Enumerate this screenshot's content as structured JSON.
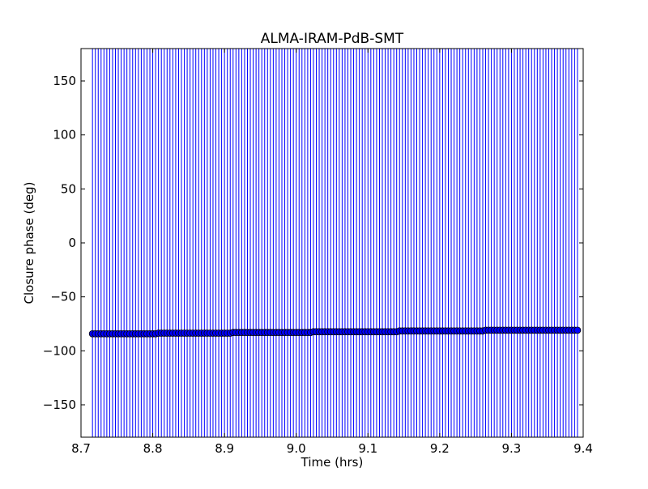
{
  "chart_data": {
    "type": "scatter",
    "title": "ALMA-IRAM-PdB-SMT",
    "xlabel": "Time (hrs)",
    "ylabel": "Closure phase (deg)",
    "xlim": [
      8.7,
      9.4
    ],
    "ylim": [
      -180,
      180
    ],
    "xticks": [
      "8.7",
      "8.8",
      "8.9",
      "9.0",
      "9.1",
      "9.2",
      "9.3",
      "9.4"
    ],
    "yticks": [
      "−150",
      "−100",
      "−50",
      "0",
      "50",
      "100",
      "150"
    ],
    "grid": false,
    "marker_color": "#0000ff",
    "errorbar_color": "#0000ff",
    "errorbar_range": [
      -180,
      180
    ],
    "x": [
      8.716,
      8.72,
      8.724,
      8.728,
      8.732,
      8.736,
      8.74,
      8.744,
      8.748,
      8.752,
      8.756,
      8.76,
      8.764,
      8.768,
      8.772,
      8.776,
      8.78,
      8.784,
      8.788,
      8.792,
      8.796,
      8.8,
      8.804,
      8.808,
      8.812,
      8.816,
      8.82,
      8.824,
      8.828,
      8.832,
      8.836,
      8.84,
      8.844,
      8.848,
      8.852,
      8.856,
      8.86,
      8.864,
      8.868,
      8.872,
      8.876,
      8.88,
      8.884,
      8.888,
      8.892,
      8.896,
      8.9,
      8.904,
      8.908,
      8.912,
      8.916,
      8.92,
      8.924,
      8.928,
      8.932,
      8.936,
      8.94,
      8.944,
      8.948,
      8.952,
      8.956,
      8.96,
      8.964,
      8.968,
      8.972,
      8.976,
      8.98,
      8.984,
      8.988,
      8.992,
      8.996,
      9.0,
      9.004,
      9.008,
      9.012,
      9.016,
      9.02,
      9.024,
      9.028,
      9.032,
      9.036,
      9.04,
      9.044,
      9.048,
      9.052,
      9.056,
      9.06,
      9.064,
      9.068,
      9.072,
      9.076,
      9.08,
      9.084,
      9.088,
      9.092,
      9.096,
      9.1,
      9.104,
      9.108,
      9.112,
      9.116,
      9.12,
      9.124,
      9.128,
      9.132,
      9.136,
      9.14,
      9.144,
      9.148,
      9.152,
      9.156,
      9.16,
      9.164,
      9.168,
      9.172,
      9.176,
      9.18,
      9.184,
      9.188,
      9.192,
      9.196,
      9.2,
      9.204,
      9.208,
      9.212,
      9.216,
      9.22,
      9.224,
      9.228,
      9.232,
      9.236,
      9.24,
      9.244,
      9.248,
      9.252,
      9.256,
      9.26,
      9.264,
      9.268,
      9.272,
      9.276,
      9.28,
      9.284,
      9.288,
      9.292,
      9.296,
      9.3,
      9.304,
      9.308,
      9.312,
      9.316,
      9.32,
      9.324,
      9.328,
      9.332,
      9.336,
      9.34,
      9.344,
      9.348,
      9.352,
      9.356,
      9.36,
      9.364,
      9.368,
      9.372,
      9.376,
      9.38,
      9.384,
      9.388,
      9.392
    ],
    "y": [
      -84.2,
      -84.2,
      -84.2,
      -84.2,
      -84.2,
      -84.2,
      -84.2,
      -84.2,
      -84.2,
      -84.2,
      -84.2,
      -84.2,
      -84.2,
      -84.2,
      -84.2,
      -84.2,
      -84.2,
      -84.2,
      -84.2,
      -84.2,
      -84.2,
      -84.2,
      -84.2,
      -83.6,
      -83.6,
      -83.6,
      -83.6,
      -83.6,
      -83.6,
      -83.6,
      -83.6,
      -83.6,
      -83.6,
      -83.6,
      -83.6,
      -83.6,
      -83.6,
      -83.6,
      -83.6,
      -83.6,
      -83.6,
      -83.6,
      -83.6,
      -83.6,
      -83.6,
      -83.6,
      -83.6,
      -83.6,
      -83.6,
      -83.0,
      -83.0,
      -83.0,
      -83.0,
      -83.0,
      -83.0,
      -83.0,
      -83.0,
      -83.0,
      -83.0,
      -83.0,
      -83.0,
      -83.0,
      -83.0,
      -83.0,
      -83.0,
      -83.0,
      -83.0,
      -83.0,
      -83.0,
      -83.0,
      -83.0,
      -83.0,
      -83.0,
      -83.0,
      -83.0,
      -83.0,
      -83.0,
      -82.3,
      -82.3,
      -82.3,
      -82.3,
      -82.3,
      -82.3,
      -82.3,
      -82.3,
      -82.3,
      -82.3,
      -82.3,
      -82.3,
      -82.3,
      -82.3,
      -82.3,
      -82.3,
      -82.3,
      -82.3,
      -82.3,
      -82.3,
      -82.3,
      -82.3,
      -82.3,
      -82.3,
      -82.3,
      -82.3,
      -82.3,
      -82.3,
      -82.3,
      -82.3,
      -81.6,
      -81.6,
      -81.6,
      -81.6,
      -81.6,
      -81.6,
      -81.6,
      -81.6,
      -81.6,
      -81.6,
      -81.6,
      -81.6,
      -81.6,
      -81.6,
      -81.6,
      -81.6,
      -81.6,
      -81.6,
      -81.6,
      -81.6,
      -81.6,
      -81.6,
      -81.6,
      -81.6,
      -81.6,
      -81.6,
      -81.6,
      -81.6,
      -81.6,
      -81.6,
      -80.9,
      -80.9,
      -80.9,
      -80.9,
      -80.9,
      -80.9,
      -80.9,
      -80.9,
      -80.9,
      -80.9,
      -80.9,
      -80.9,
      -80.9,
      -80.9,
      -80.9,
      -80.9,
      -80.9,
      -80.9,
      -80.9,
      -80.9,
      -80.9,
      -80.9,
      -80.9,
      -80.9,
      -80.9,
      -80.9,
      -80.9,
      -80.9,
      -80.9,
      -80.9,
      -80.9,
      -80.9,
      -80.9
    ]
  }
}
